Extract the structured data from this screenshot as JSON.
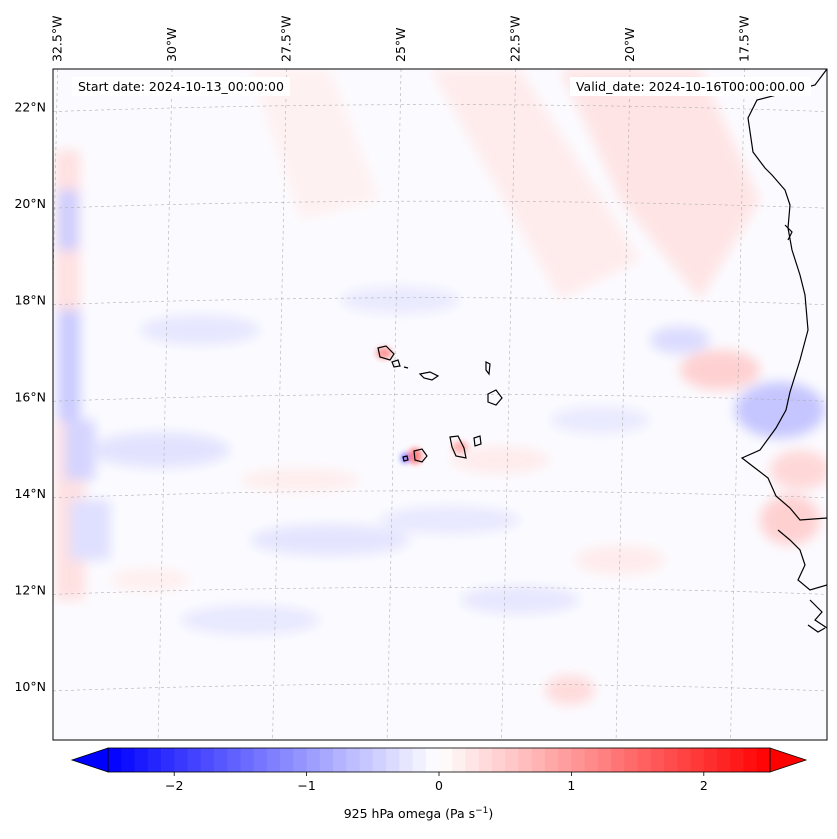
{
  "map": {
    "start_label": "Start date: 2024-10-13_00:00:00",
    "valid_label": "Valid_date: 2024-10-16T00:00:00.00",
    "lon_ticks": [
      {
        "lon": -32.5,
        "label": "32.5°W"
      },
      {
        "lon": -30.0,
        "label": "30°W"
      },
      {
        "lon": -27.5,
        "label": "27.5°W"
      },
      {
        "lon": -25.0,
        "label": "25°W"
      },
      {
        "lon": -22.5,
        "label": "22.5°W"
      },
      {
        "lon": -20.0,
        "label": "20°W"
      },
      {
        "lon": -17.5,
        "label": "17.5°W"
      }
    ],
    "lat_ticks": [
      {
        "lat": 22,
        "label": "22°N"
      },
      {
        "lat": 20,
        "label": "20°N"
      },
      {
        "lat": 18,
        "label": "18°N"
      },
      {
        "lat": 16,
        "label": "16°N"
      },
      {
        "lat": 14,
        "label": "14°N"
      },
      {
        "lat": 12,
        "label": "12°N"
      },
      {
        "lat": 10,
        "label": "10°N"
      }
    ],
    "extent": {
      "lon_min": -32.6,
      "lon_max": -15.7,
      "lat_min": 8.9,
      "lat_max": 22.8
    },
    "field": "925 hPa omega",
    "colors": {
      "negative": "#0000ff",
      "zero": "#ffffff",
      "positive": "#ff0000",
      "coast": "#000000",
      "grid": "#b0b0b0"
    }
  },
  "colorbar": {
    "ticks": [
      {
        "value": -2,
        "label": "−2"
      },
      {
        "value": -1,
        "label": "−1"
      },
      {
        "value": 0,
        "label": "0"
      },
      {
        "value": 1,
        "label": "1"
      },
      {
        "value": 2,
        "label": "2"
      }
    ],
    "vmin": -2.5,
    "vmax": 2.5,
    "levels": 50,
    "label_main": "925 hPa omega (Pa s",
    "label_exp": "−1",
    "label_close": ")"
  }
}
